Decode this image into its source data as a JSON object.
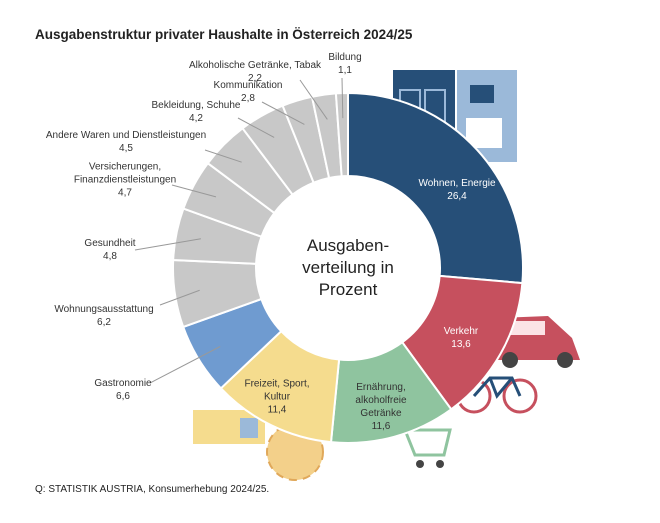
{
  "chart_data": {
    "type": "donut",
    "title": "Ausgabenstruktur privater Haushalte in Österreich 2024/25",
    "center_label": "Ausgaben-verteilung in Prozent",
    "source": "Q: STATISTIK AUSTRIA, Konsumerhebung 2024/25.",
    "categories": [
      "Wohnen, Energie",
      "Verkehr",
      "Ernährung, alkoholfreie Getränke",
      "Freizeit, Sport, Kultur",
      "Gastronomie",
      "Wohnungsausstattung",
      "Gesundheit",
      "Versicherungen, Finanzdienstleistungen",
      "Andere Waren und Dienstleistungen",
      "Bekleidung, Schuhe",
      "Kommunikation",
      "Alkoholische Getränke, Tabak",
      "Bildung"
    ],
    "values": [
      26.4,
      13.6,
      11.6,
      11.4,
      6.6,
      6.2,
      4.8,
      4.7,
      4.5,
      4.2,
      2.8,
      2.2,
      1.1
    ],
    "value_labels": [
      "26,4",
      "13,6",
      "11,6",
      "11,4",
      "6,6",
      "6,2",
      "4,8",
      "4,7",
      "4,5",
      "4,2",
      "2,8",
      "2,2",
      "1,1"
    ],
    "colors": [
      "#264f78",
      "#c6505e",
      "#8fc49f",
      "#f5dc8e",
      "#6f9bd0",
      "#c8c8c8",
      "#c8c8c8",
      "#c8c8c8",
      "#c8c8c8",
      "#c8c8c8",
      "#c8c8c8",
      "#c8c8c8",
      "#c8c8c8"
    ]
  }
}
